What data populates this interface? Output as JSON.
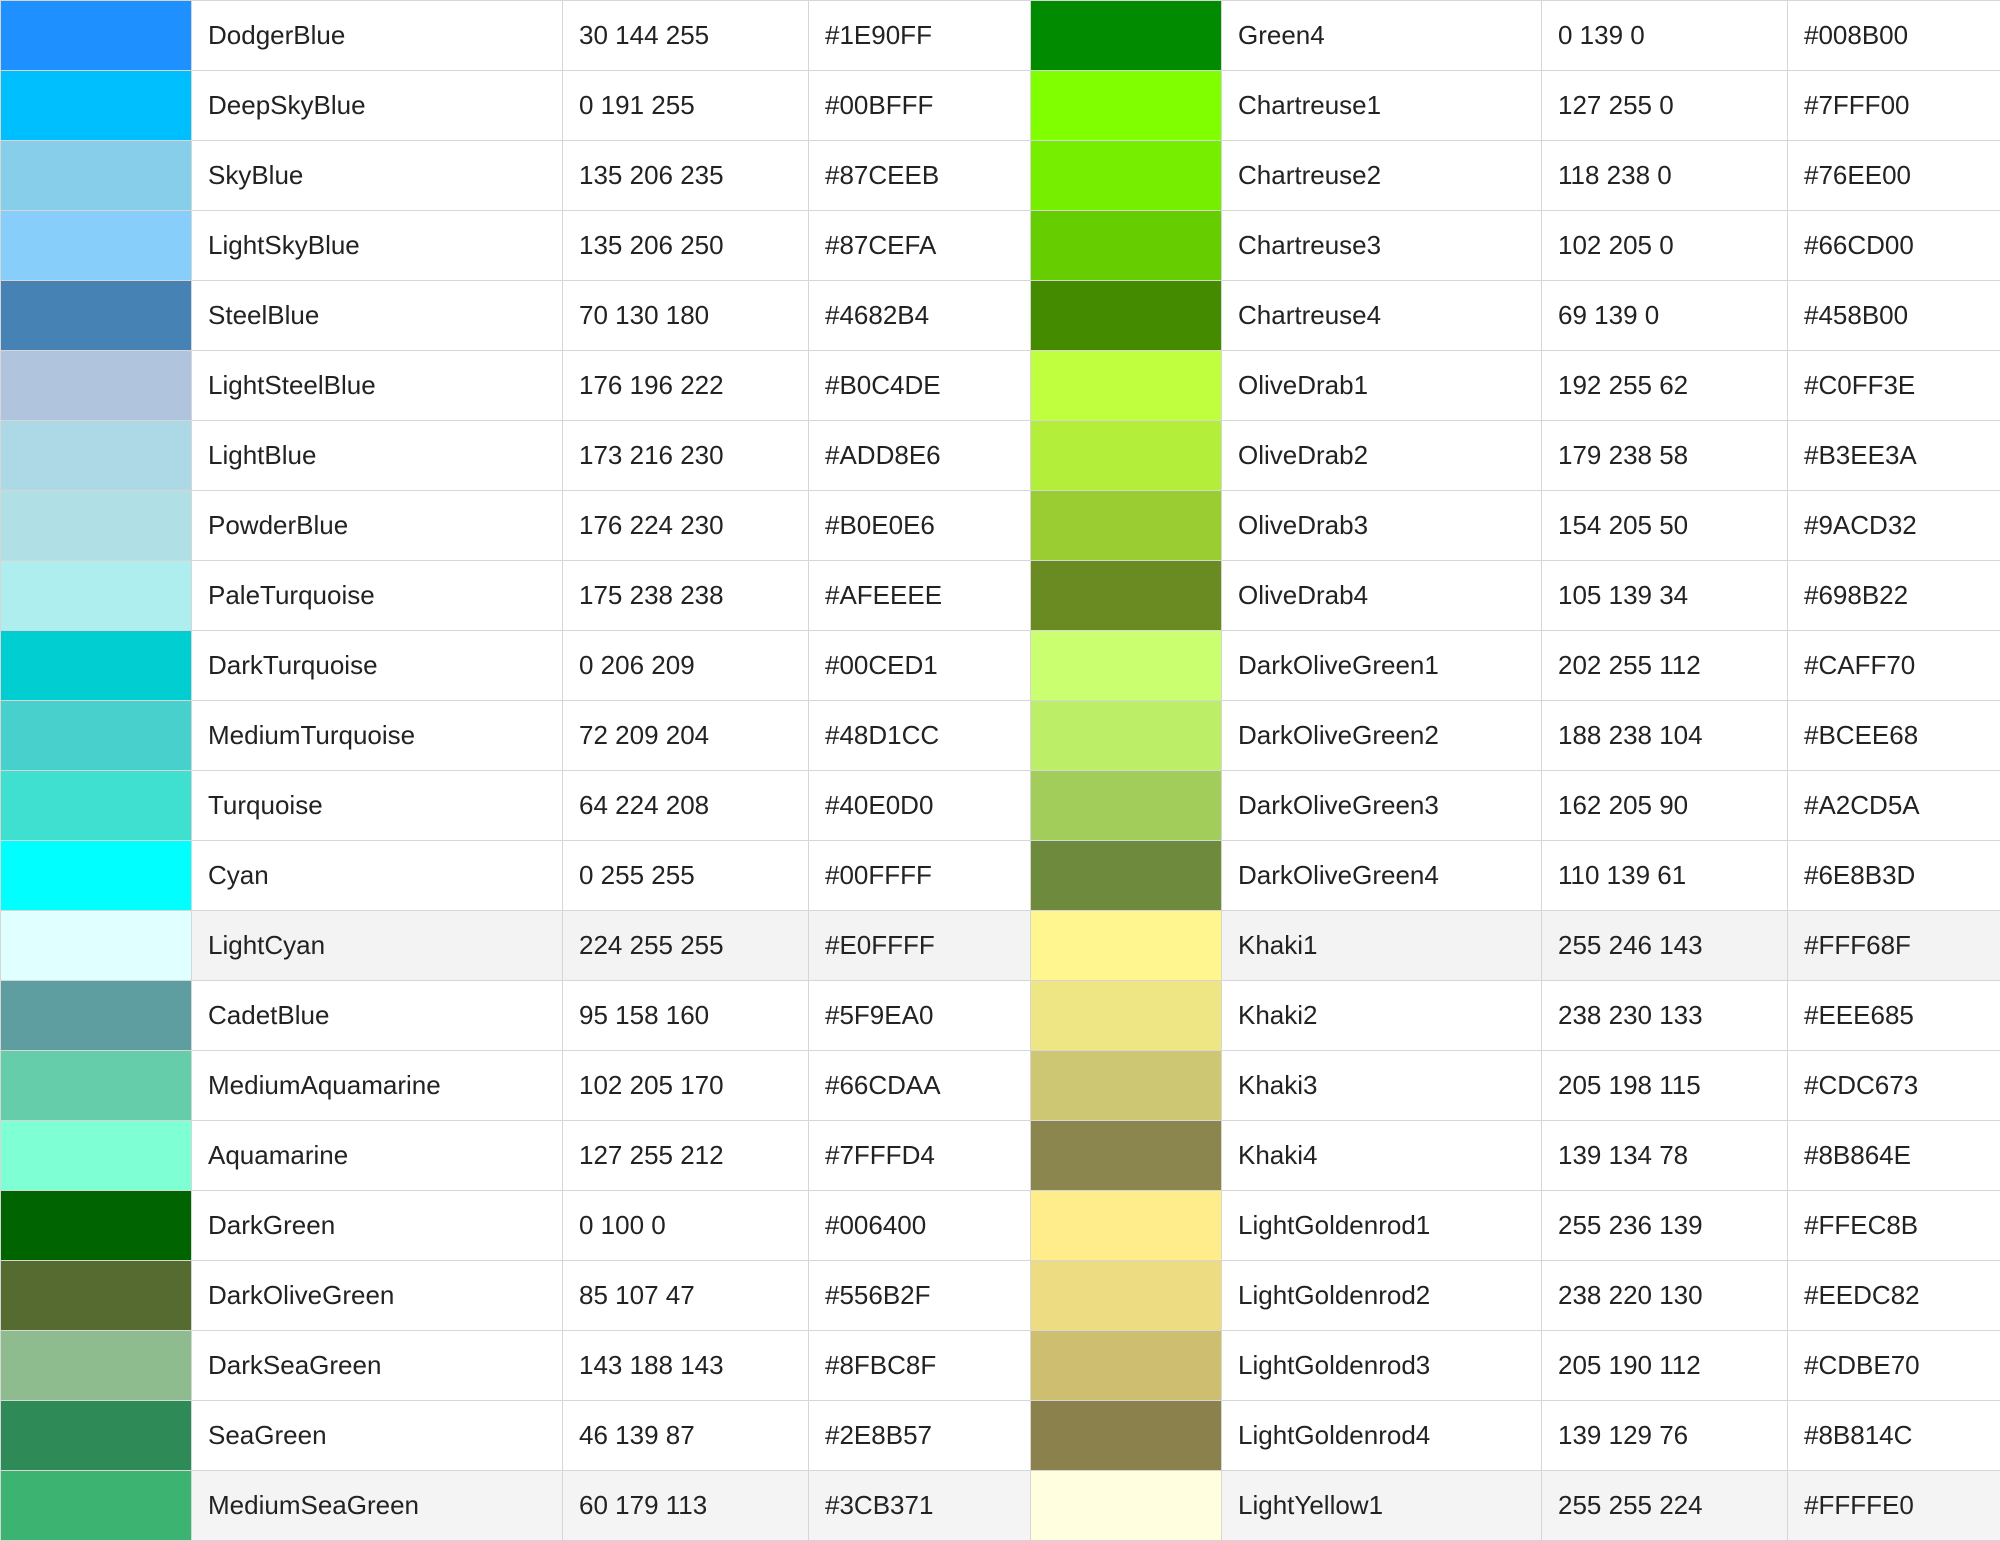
{
  "rows": [
    {
      "left": {
        "swatch": "#1E90FF",
        "name": "DodgerBlue",
        "rgb": "30 144 255",
        "hex": "#1E90FF"
      },
      "right": {
        "swatch": "#008B00",
        "name": "Green4",
        "rgb": "0 139 0",
        "hex": "#008B00"
      }
    },
    {
      "left": {
        "swatch": "#00BFFF",
        "name": "DeepSkyBlue",
        "rgb": "0 191 255",
        "hex": "#00BFFF"
      },
      "right": {
        "swatch": "#7FFF00",
        "name": "Chartreuse1",
        "rgb": "127 255 0",
        "hex": "#7FFF00"
      }
    },
    {
      "left": {
        "swatch": "#87CEEB",
        "name": "SkyBlue",
        "rgb": "135 206 235",
        "hex": "#87CEEB"
      },
      "right": {
        "swatch": "#76EE00",
        "name": "Chartreuse2",
        "rgb": "118 238 0",
        "hex": "#76EE00"
      }
    },
    {
      "left": {
        "swatch": "#87CEFA",
        "name": "LightSkyBlue",
        "rgb": "135 206 250",
        "hex": "#87CEFA"
      },
      "right": {
        "swatch": "#66CD00",
        "name": "Chartreuse3",
        "rgb": "102 205 0",
        "hex": "#66CD00"
      }
    },
    {
      "left": {
        "swatch": "#4682B4",
        "name": "SteelBlue",
        "rgb": "70 130 180",
        "hex": "#4682B4"
      },
      "right": {
        "swatch": "#458B00",
        "name": "Chartreuse4",
        "rgb": "69 139 0",
        "hex": "#458B00"
      }
    },
    {
      "left": {
        "swatch": "#B0C4DE",
        "name": "LightSteelBlue",
        "rgb": "176 196 222",
        "hex": "#B0C4DE"
      },
      "right": {
        "swatch": "#C0FF3E",
        "name": "OliveDrab1",
        "rgb": "192 255 62",
        "hex": "#C0FF3E"
      }
    },
    {
      "left": {
        "swatch": "#ADD8E6",
        "name": "LightBlue",
        "rgb": "173 216 230",
        "hex": "#ADD8E6"
      },
      "right": {
        "swatch": "#B3EE3A",
        "name": "OliveDrab2",
        "rgb": "179 238 58",
        "hex": "#B3EE3A"
      }
    },
    {
      "left": {
        "swatch": "#B0E0E6",
        "name": "PowderBlue",
        "rgb": "176 224 230",
        "hex": "#B0E0E6"
      },
      "right": {
        "swatch": "#9ACD32",
        "name": "OliveDrab3",
        "rgb": "154 205 50",
        "hex": "#9ACD32"
      }
    },
    {
      "left": {
        "swatch": "#AFEEEE",
        "name": "PaleTurquoise",
        "rgb": "175 238 238",
        "hex": "#AFEEEE"
      },
      "right": {
        "swatch": "#698B22",
        "name": "OliveDrab4",
        "rgb": "105 139 34",
        "hex": "#698B22"
      }
    },
    {
      "left": {
        "swatch": "#00CED1",
        "name": "DarkTurquoise",
        "rgb": "0 206 209",
        "hex": "#00CED1"
      },
      "right": {
        "swatch": "#CAFF70",
        "name": "DarkOliveGreen1",
        "rgb": "202 255 112",
        "hex": "#CAFF70"
      }
    },
    {
      "left": {
        "swatch": "#48D1CC",
        "name": "MediumTurquoise",
        "rgb": "72 209 204",
        "hex": "#48D1CC"
      },
      "right": {
        "swatch": "#BCEE68",
        "name": "DarkOliveGreen2",
        "rgb": "188 238 104",
        "hex": "#BCEE68"
      }
    },
    {
      "left": {
        "swatch": "#40E0D0",
        "name": "Turquoise",
        "rgb": "64 224 208",
        "hex": "#40E0D0"
      },
      "right": {
        "swatch": "#A2CD5A",
        "name": "DarkOliveGreen3",
        "rgb": "162 205 90",
        "hex": "#A2CD5A"
      }
    },
    {
      "left": {
        "swatch": "#00FFFF",
        "name": "Cyan",
        "rgb": "0 255 255",
        "hex": "#00FFFF"
      },
      "right": {
        "swatch": "#6E8B3D",
        "name": "DarkOliveGreen4",
        "rgb": "110 139 61",
        "hex": "#6E8B3D"
      }
    },
    {
      "left": {
        "swatch": "#E0FFFF",
        "name": "LightCyan",
        "rgb": "224 255 255",
        "hex": "#E0FFFF"
      },
      "right": {
        "swatch": "#FFF68F",
        "name": "Khaki1",
        "rgb": "255 246 143",
        "hex": "#FFF68F"
      }
    },
    {
      "left": {
        "swatch": "#5F9EA0",
        "name": "CadetBlue",
        "rgb": "95 158 160",
        "hex": "#5F9EA0"
      },
      "right": {
        "swatch": "#EEE685",
        "name": "Khaki2",
        "rgb": "238 230 133",
        "hex": "#EEE685"
      }
    },
    {
      "left": {
        "swatch": "#66CDAA",
        "name": "MediumAquamarine",
        "rgb": "102 205 170",
        "hex": "#66CDAA"
      },
      "right": {
        "swatch": "#CDC673",
        "name": "Khaki3",
        "rgb": "205 198 115",
        "hex": "#CDC673"
      }
    },
    {
      "left": {
        "swatch": "#7FFFD4",
        "name": "Aquamarine",
        "rgb": "127 255 212",
        "hex": "#7FFFD4"
      },
      "right": {
        "swatch": "#8B864E",
        "name": "Khaki4",
        "rgb": "139 134 78",
        "hex": "#8B864E"
      }
    },
    {
      "left": {
        "swatch": "#006400",
        "name": "DarkGreen",
        "rgb": "0 100 0",
        "hex": "#006400"
      },
      "right": {
        "swatch": "#FFEC8B",
        "name": "LightGoldenrod1",
        "rgb": "255 236 139",
        "hex": "#FFEC8B"
      }
    },
    {
      "left": {
        "swatch": "#556B2F",
        "name": "DarkOliveGreen",
        "rgb": "85 107 47",
        "hex": "#556B2F"
      },
      "right": {
        "swatch": "#EEDC82",
        "name": "LightGoldenrod2",
        "rgb": "238 220 130",
        "hex": "#EEDC82"
      }
    },
    {
      "left": {
        "swatch": "#8FBC8F",
        "name": "DarkSeaGreen",
        "rgb": "143 188 143",
        "hex": "#8FBC8F"
      },
      "right": {
        "swatch": "#CDBE70",
        "name": "LightGoldenrod3",
        "rgb": "205 190 112",
        "hex": "#CDBE70"
      }
    },
    {
      "left": {
        "swatch": "#2E8B57",
        "name": "SeaGreen",
        "rgb": "46 139 87",
        "hex": "#2E8B57"
      },
      "right": {
        "swatch": "#8B814C",
        "name": "LightGoldenrod4",
        "rgb": "139 129 76",
        "hex": "#8B814C"
      }
    },
    {
      "left": {
        "swatch": "#3CB371",
        "name": "MediumSeaGreen",
        "rgb": "60 179 113",
        "hex": "#3CB371"
      },
      "right": {
        "swatch": "#FFFFE0",
        "name": "LightYellow1",
        "rgb": "255 255 224",
        "hex": "#FFFFE0"
      }
    }
  ]
}
